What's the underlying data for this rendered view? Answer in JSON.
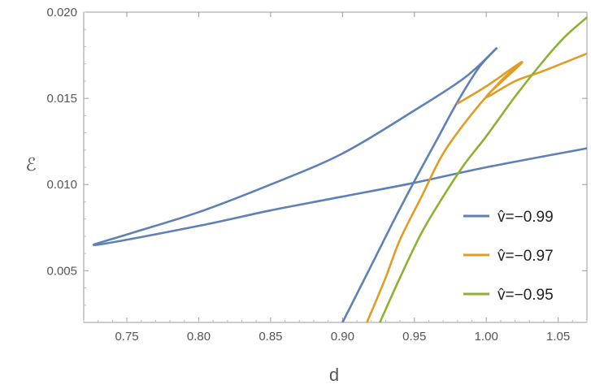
{
  "chart_data": {
    "type": "line",
    "title": "",
    "xlabel": "d",
    "ylabel": "ℰ",
    "xlim": [
      0.72,
      1.07
    ],
    "ylim": [
      0.002,
      0.02
    ],
    "xticks": [
      "0.75",
      "0.80",
      "0.85",
      "0.90",
      "0.95",
      "1.00",
      "1.05"
    ],
    "yticks": [
      "0.005",
      "0.010",
      "0.015",
      "0.020"
    ],
    "legend_position": "right",
    "grid": false,
    "series": [
      {
        "name": "v̂=−0.99",
        "color": "#5E81B5",
        "points": [
          [
            1.007,
            0.0179
          ],
          [
            0.985,
            0.0162
          ],
          [
            0.95,
            0.0143
          ],
          [
            0.9,
            0.0118
          ],
          [
            0.85,
            0.01
          ],
          [
            0.8,
            0.0084
          ],
          [
            0.75,
            0.0071
          ],
          [
            0.729,
            0.0065
          ],
          [
            0.8,
            0.0076
          ],
          [
            0.85,
            0.0085
          ],
          [
            0.9,
            0.0093
          ],
          [
            0.95,
            0.0101
          ],
          [
            1.0,
            0.011
          ],
          [
            1.07,
            0.0121
          ]
        ],
        "branch": [
          [
            1.007,
            0.0179
          ],
          [
            0.995,
            0.0168
          ],
          [
            0.98,
            0.0148
          ],
          [
            0.965,
            0.0125
          ],
          [
            0.95,
            0.0102
          ],
          [
            0.935,
            0.0078
          ],
          [
            0.92,
            0.0053
          ],
          [
            0.9,
            0.002
          ]
        ]
      },
      {
        "name": "v̂=−0.97",
        "color": "#E19C24",
        "points": [
          [
            0.98,
            0.0147
          ],
          [
            1.0,
            0.0157
          ],
          [
            1.025,
            0.0171
          ],
          [
            1.0,
            0.0151
          ],
          [
            1.02,
            0.016
          ],
          [
            1.04,
            0.0166
          ],
          [
            1.07,
            0.0176
          ]
        ],
        "branch": [
          [
            1.025,
            0.0171
          ],
          [
            1.01,
            0.016
          ],
          [
            0.99,
            0.0141
          ],
          [
            0.97,
            0.0118
          ],
          [
            0.955,
            0.0093
          ],
          [
            0.94,
            0.0068
          ],
          [
            0.93,
            0.0046
          ],
          [
            0.917,
            0.002
          ]
        ]
      },
      {
        "name": "v̂=−0.95",
        "color": "#8FB032",
        "points": [
          [
            0.926,
            0.002
          ],
          [
            0.94,
            0.0046
          ],
          [
            0.955,
            0.0072
          ],
          [
            0.97,
            0.0093
          ],
          [
            0.985,
            0.0112
          ],
          [
            1.0,
            0.0128
          ],
          [
            1.02,
            0.0151
          ],
          [
            1.04,
            0.0172
          ],
          [
            1.055,
            0.0186
          ],
          [
            1.07,
            0.0197
          ]
        ]
      }
    ]
  }
}
